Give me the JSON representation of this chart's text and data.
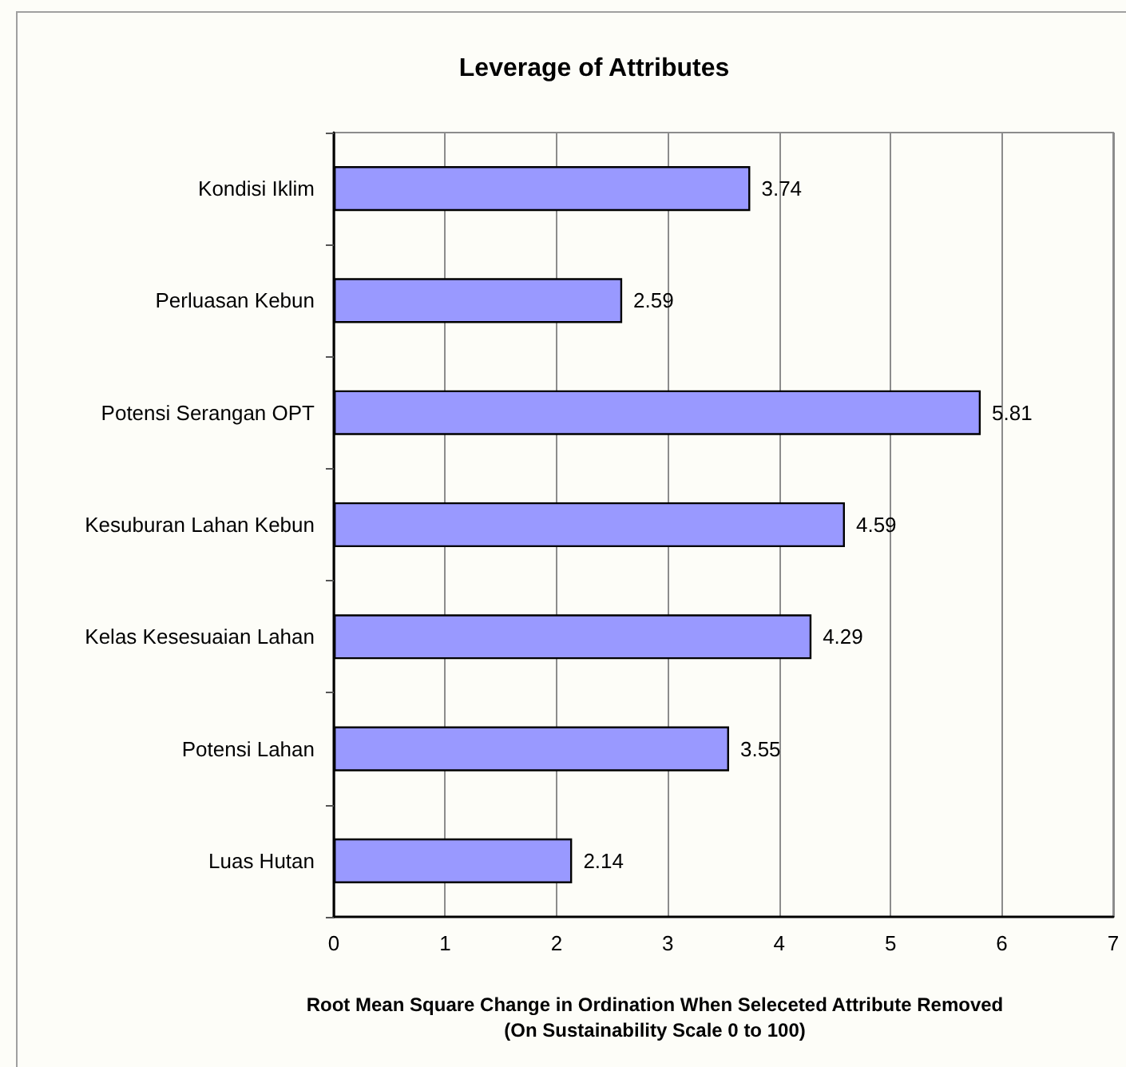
{
  "chart_data": {
    "type": "bar",
    "orientation": "horizontal",
    "title": "Leverage of Attributes",
    "xlabel": "Root Mean Square Change in Ordination When Seleceted Attribute Removed\n(On Sustainability Scale 0 to 100)",
    "categories": [
      "Kondisi Iklim",
      "Perluasan Kebun",
      "Potensi Serangan OPT",
      "Kesuburan Lahan Kebun",
      "Kelas Kesesuaian Lahan",
      "Potensi Lahan",
      "Luas Hutan"
    ],
    "values": [
      3.74,
      2.59,
      5.81,
      4.59,
      4.29,
      3.55,
      2.14
    ],
    "color": "#9999ff",
    "xlim": [
      0,
      7
    ],
    "xticks": [
      0,
      1,
      2,
      3,
      4,
      5,
      6,
      7
    ],
    "grid": "x",
    "data_labels": true
  }
}
